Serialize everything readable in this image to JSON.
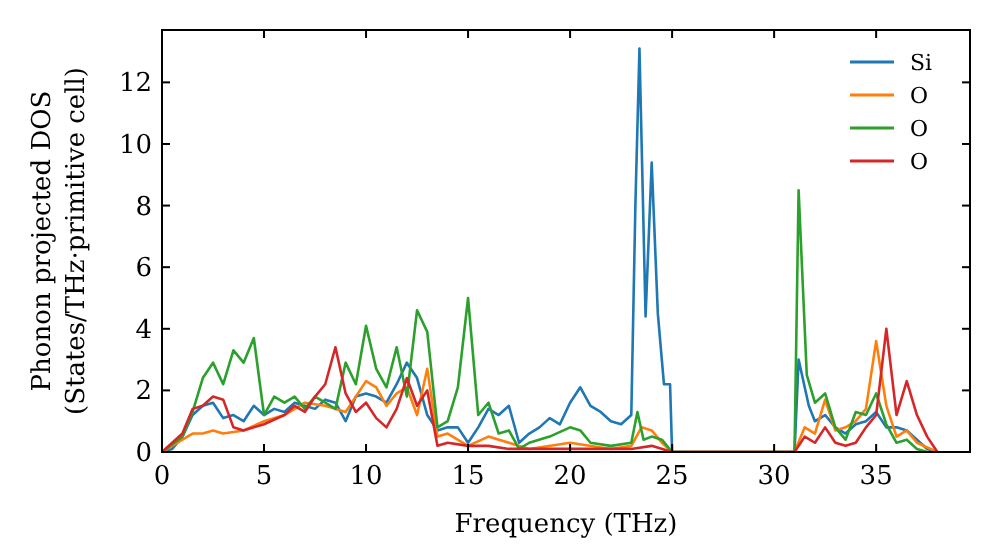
{
  "chart_data": {
    "type": "line",
    "xlabel": "Frequency (THz)",
    "ylabel": "Phonon projected DOS\n(States/THz·primitive cell)",
    "xlim": [
      0,
      39.6
    ],
    "ylim": [
      0,
      13.7
    ],
    "xticks": [
      0,
      5,
      10,
      15,
      20,
      25,
      30,
      35
    ],
    "yticks": [
      0,
      2,
      4,
      6,
      8,
      10,
      12
    ],
    "grid": false,
    "legend": "top right",
    "line_style": "solid",
    "series": [
      {
        "name": "Si",
        "color": "#1f77b4",
        "x": [
          0,
          0.5,
          1,
          1.5,
          2,
          2.5,
          3,
          3.5,
          4,
          4.5,
          5,
          5.5,
          6,
          6.5,
          7,
          7.5,
          8,
          8.5,
          9,
          9.5,
          10,
          10.5,
          11,
          11.5,
          12,
          12.5,
          13,
          13.5,
          14,
          14.5,
          15,
          15.5,
          16,
          16.5,
          17,
          17.5,
          18,
          18.5,
          19,
          19.5,
          20,
          20.5,
          21,
          21.5,
          22,
          22.5,
          23,
          23.2,
          23.4,
          23.7,
          24,
          24.3,
          24.6,
          24.9,
          25,
          31,
          31.2,
          31.7,
          32,
          32.5,
          33,
          33.5,
          34,
          34.5,
          35,
          35.5,
          36,
          36.5,
          37,
          37.5,
          38
        ],
        "values": [
          0,
          0.1,
          0.5,
          1.2,
          1.5,
          1.6,
          1.1,
          1.2,
          1.0,
          1.5,
          1.2,
          1.4,
          1.3,
          1.6,
          1.5,
          1.4,
          1.7,
          1.6,
          1.0,
          1.8,
          1.9,
          1.8,
          1.6,
          2.2,
          2.9,
          2.4,
          1.2,
          0.7,
          0.8,
          0.8,
          0.3,
          0.8,
          1.4,
          1.2,
          1.5,
          0.3,
          0.6,
          0.8,
          1.1,
          0.9,
          1.6,
          2.1,
          1.5,
          1.3,
          1.0,
          0.9,
          1.2,
          8.0,
          13.1,
          4.4,
          9.4,
          4.5,
          2.2,
          2.2,
          0,
          0,
          3.0,
          1.5,
          1.0,
          1.2,
          0.8,
          0.6,
          0.9,
          1.0,
          1.3,
          0.8,
          0.8,
          0.7,
          0.4,
          0.1,
          0
        ]
      },
      {
        "name": "O",
        "color": "#ff7f0e",
        "x": [
          0,
          1,
          1.5,
          2,
          2.5,
          3,
          4,
          5,
          6,
          7,
          8,
          9,
          10,
          10.5,
          11,
          11.5,
          12,
          12.5,
          13,
          13.5,
          14,
          15,
          16,
          17,
          18,
          20,
          22,
          23,
          23.5,
          24,
          24.5,
          25,
          31,
          31.5,
          32,
          32.5,
          33,
          33.5,
          34,
          34.5,
          35,
          35.5,
          36,
          36.5,
          37,
          38
        ],
        "values": [
          0,
          0.4,
          0.6,
          0.6,
          0.7,
          0.6,
          0.7,
          1.0,
          1.2,
          1.6,
          1.5,
          1.3,
          2.3,
          2.1,
          1.5,
          1.9,
          2.1,
          1.2,
          2.7,
          0.5,
          0.6,
          0.2,
          0.5,
          0.3,
          0.1,
          0.3,
          0.1,
          0.2,
          0.8,
          0.7,
          0.3,
          0,
          0,
          0.8,
          0.6,
          1.7,
          0.7,
          0.8,
          1.0,
          1.4,
          3.6,
          1.5,
          0.5,
          0.7,
          0.3,
          0
        ]
      },
      {
        "name": "O",
        "color": "#2ca02c",
        "x": [
          0,
          1,
          1.5,
          2,
          2.5,
          3,
          3.5,
          4,
          4.5,
          5,
          5.5,
          6,
          6.5,
          7,
          7.5,
          8,
          8.5,
          9,
          9.5,
          10,
          10.5,
          11,
          11.5,
          12,
          12.5,
          13,
          13.5,
          14,
          14.5,
          15,
          15.5,
          16,
          16.5,
          17,
          17.5,
          18,
          19,
          20,
          20.5,
          21,
          22,
          23,
          23.3,
          23.6,
          24,
          24.5,
          25,
          31,
          31.2,
          31.6,
          32,
          32.5,
          33,
          33.5,
          34,
          34.5,
          35,
          35.5,
          36,
          36.5,
          37,
          37.5
        ],
        "values": [
          0,
          0.5,
          1.3,
          2.4,
          2.9,
          2.2,
          3.3,
          2.9,
          3.7,
          1.2,
          1.8,
          1.6,
          1.8,
          1.4,
          1.8,
          1.6,
          1.4,
          2.9,
          2.2,
          4.1,
          2.7,
          2.1,
          3.4,
          1.8,
          4.6,
          3.9,
          0.8,
          1.0,
          2.1,
          5.0,
          1.2,
          1.6,
          0.6,
          0.7,
          0.1,
          0.3,
          0.5,
          0.8,
          0.7,
          0.3,
          0.2,
          0.3,
          1.3,
          0.4,
          0.5,
          0.4,
          0,
          0,
          8.5,
          2.5,
          1.6,
          1.9,
          0.8,
          0.4,
          1.3,
          1.2,
          1.9,
          0.9,
          0.3,
          0.4,
          0.1,
          0
        ]
      },
      {
        "name": "O",
        "color": "#d62728",
        "x": [
          0,
          1,
          1.5,
          2,
          2.5,
          3,
          3.5,
          4,
          4.5,
          5,
          6,
          6.5,
          7,
          7.5,
          8,
          8.5,
          9,
          9.5,
          10,
          10.5,
          11,
          11.5,
          12,
          12.5,
          13,
          13.5,
          14,
          15,
          16,
          17,
          20,
          23,
          24,
          25,
          31,
          31.5,
          32,
          32.5,
          33,
          33.5,
          34,
          34.5,
          35,
          35.5,
          36,
          36.5,
          37,
          37.5,
          38
        ],
        "values": [
          0,
          0.6,
          1.4,
          1.5,
          1.8,
          1.7,
          0.8,
          0.7,
          0.8,
          0.9,
          1.2,
          1.5,
          1.3,
          1.8,
          2.2,
          3.4,
          1.9,
          1.3,
          1.6,
          1.1,
          0.8,
          1.4,
          2.4,
          1.5,
          2.0,
          0.2,
          0.3,
          0.2,
          0.2,
          0.1,
          0.1,
          0.1,
          0.2,
          0,
          0,
          0.5,
          0.3,
          0.8,
          0.3,
          0.2,
          0.3,
          0.8,
          1.2,
          4.0,
          1.2,
          2.3,
          1.2,
          0.5,
          0
        ]
      }
    ]
  }
}
